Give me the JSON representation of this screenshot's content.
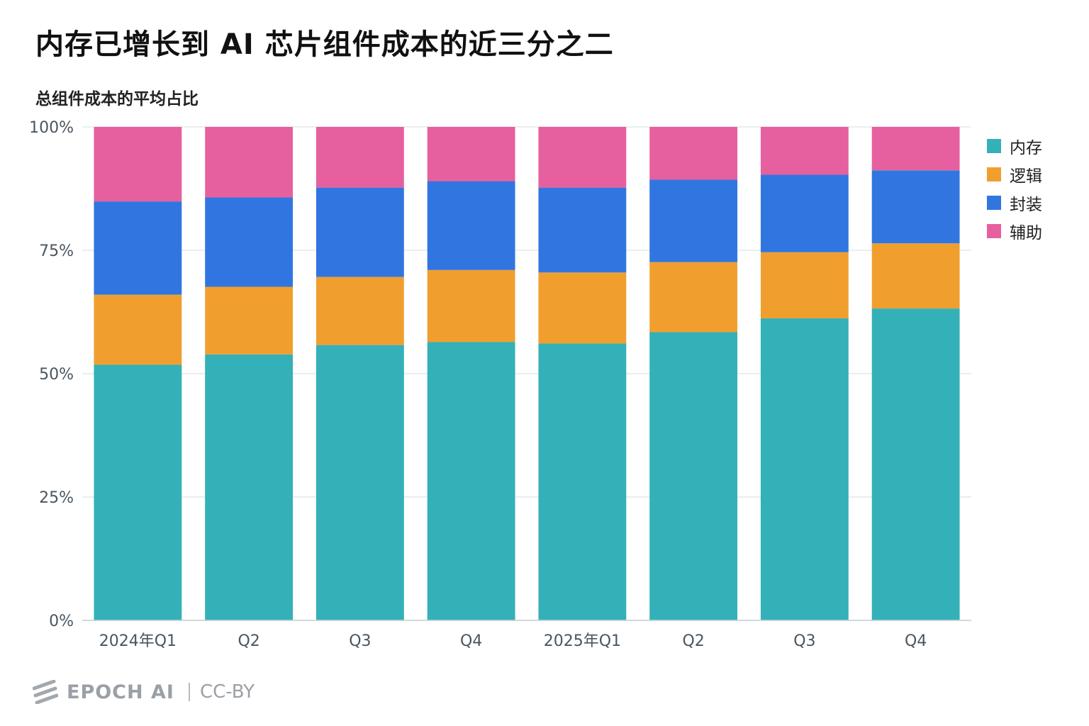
{
  "title": "内存已增长到 AI 芯片组件成本的近三分之二",
  "subtitle": "总组件成本的平均占比",
  "footer": {
    "brand": "EPOCH AI",
    "license": "CC-BY"
  },
  "chart_data": {
    "type": "bar",
    "stacked": true,
    "title": "内存已增长到 AI 芯片组件成本的近三分之二",
    "ylabel": "总组件成本的平均占比",
    "xlabel": "",
    "ylim": [
      0,
      100
    ],
    "yticks": [
      0,
      25,
      50,
      75,
      100
    ],
    "ytick_labels": [
      "0%",
      "25%",
      "50%",
      "75%",
      "100%"
    ],
    "categories": [
      "2024年Q1",
      "Q2",
      "Q3",
      "Q4",
      "2025年Q1",
      "Q2",
      "Q3",
      "Q4"
    ],
    "series": [
      {
        "name": "内存",
        "color": "#34b0b8",
        "values": [
          51.8,
          53.9,
          55.8,
          56.4,
          56.1,
          58.4,
          61.2,
          63.2
        ]
      },
      {
        "name": "逻辑",
        "color": "#f09f2f",
        "values": [
          14.2,
          13.7,
          13.8,
          14.6,
          14.4,
          14.2,
          13.4,
          13.2
        ]
      },
      {
        "name": "封装",
        "color": "#3176e0",
        "values": [
          18.9,
          18.1,
          18.1,
          18.0,
          17.2,
          16.7,
          15.7,
          14.8
        ]
      },
      {
        "name": "辅助",
        "color": "#e6609f",
        "values": [
          15.1,
          14.3,
          12.3,
          11.0,
          12.3,
          10.7,
          9.7,
          8.8
        ]
      }
    ],
    "grid": true,
    "legend_position": "right"
  }
}
